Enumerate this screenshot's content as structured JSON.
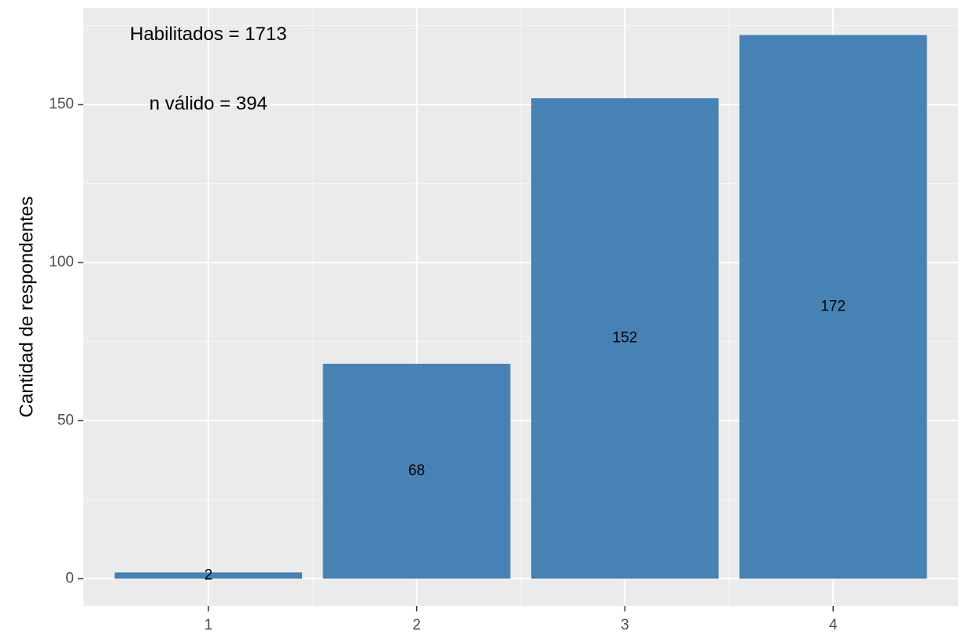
{
  "chart_data": {
    "type": "bar",
    "categories": [
      "1",
      "2",
      "3",
      "4"
    ],
    "values": [
      2,
      68,
      152,
      172
    ],
    "data_labels": [
      "2",
      "68",
      "152",
      "172"
    ],
    "title": "",
    "xlabel": "",
    "ylabel": "Cantidad de respondentes",
    "ylim": [
      -8.6,
      180.6
    ],
    "yticks": [
      0,
      50,
      100,
      150
    ],
    "ytick_labels": [
      "0",
      "50",
      "100",
      "150"
    ],
    "annotations": [
      {
        "text": "Habilitados =  1713",
        "x": 1,
        "y": 172
      },
      {
        "text": "n válido = 394",
        "x": 1,
        "y": 150
      }
    ],
    "grid": true,
    "legend": "none",
    "colors": {
      "bar": "#4682B4",
      "panel_background": "#EBEBEB",
      "grid_major": "#FFFFFF",
      "grid_minor": "#F5F5F5"
    }
  }
}
